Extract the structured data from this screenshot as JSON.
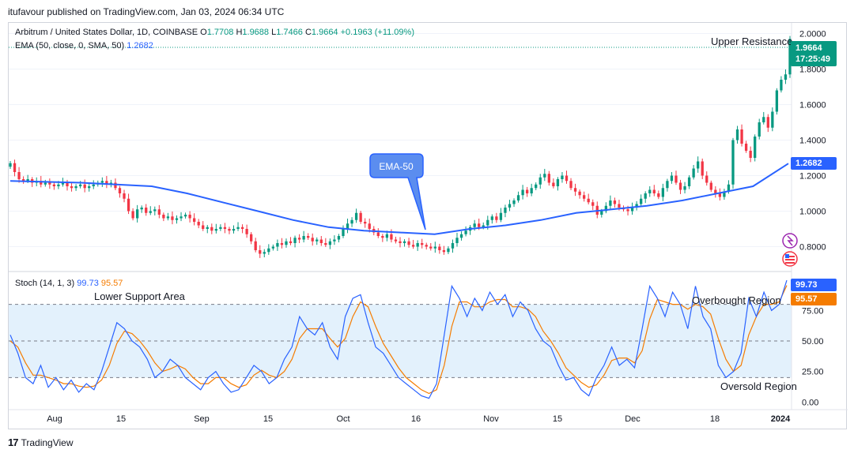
{
  "header": {
    "published": "itufavour published on TradingView.com, Jan 03, 2024 06:34 UTC"
  },
  "main_legend": {
    "symbol": "Arbitrum / United States Dollar, 1D, COINBASE",
    "o_label": "O",
    "o": "1.7708",
    "h_label": "H",
    "h": "1.9688",
    "l_label": "L",
    "l": "1.7466",
    "c_label": "C",
    "c": "1.9664",
    "change": "+0.1963 (+11.09%)"
  },
  "ema_legend": {
    "label": "EMA (50, close, 0, SMA, 50)",
    "value": "1.2682"
  },
  "stoch_legend": {
    "label": "Stoch (14, 1, 3)",
    "k": "99.73",
    "d": "95.57"
  },
  "annotations": {
    "upper_resistance": "Upper Resistance",
    "ema_callout": "EMA-50",
    "lower_support": "Lower Support Area",
    "overbought": "Overbought Region",
    "oversold": "Oversold Region"
  },
  "price_tags": {
    "last_price": "1.9664",
    "countdown": "17:25:49",
    "ema_value": "1.2682",
    "stoch_k": "99.73",
    "stoch_d": "95.57"
  },
  "footer": {
    "brand": "TradingView"
  },
  "colors": {
    "up": "#089981",
    "down": "#f23645",
    "ema": "#2962ff",
    "stoch_k": "#2962ff",
    "stoch_d": "#f57c00",
    "band": "#e3f1fc"
  },
  "chart_data": [
    {
      "type": "candlestick",
      "title": "Arbitrum / United States Dollar, 1D, COINBASE",
      "x_ticks": [
        "Aug",
        "15",
        "Sep",
        "15",
        "Oct",
        "16",
        "Nov",
        "15",
        "Dec",
        "18",
        "2024"
      ],
      "y_ticks": [
        "0.8000",
        "1.0000",
        "1.2000",
        "1.4000",
        "1.6000",
        "1.8000",
        "2.0000"
      ],
      "ylim": [
        0.66,
        2.06
      ],
      "close_series": [
        1.27,
        1.22,
        1.18,
        1.17,
        1.18,
        1.16,
        1.17,
        1.15,
        1.16,
        1.15,
        1.14,
        1.15,
        1.16,
        1.14,
        1.13,
        1.14,
        1.15,
        1.13,
        1.14,
        1.15,
        1.16,
        1.17,
        1.15,
        1.16,
        1.13,
        1.1,
        1.07,
        1.0,
        0.96,
        1.01,
        1.02,
        0.99,
        1.0,
        1.01,
        0.98,
        0.96,
        0.97,
        0.95,
        0.96,
        0.97,
        0.98,
        0.96,
        0.94,
        0.92,
        0.9,
        0.91,
        0.89,
        0.9,
        0.91,
        0.9,
        0.89,
        0.9,
        0.91,
        0.9,
        0.87,
        0.83,
        0.78,
        0.76,
        0.77,
        0.79,
        0.8,
        0.82,
        0.81,
        0.83,
        0.82,
        0.85,
        0.84,
        0.86,
        0.85,
        0.83,
        0.84,
        0.82,
        0.81,
        0.83,
        0.84,
        0.86,
        0.9,
        0.93,
        0.95,
        0.99,
        0.94,
        0.93,
        0.9,
        0.88,
        0.86,
        0.85,
        0.87,
        0.84,
        0.83,
        0.82,
        0.83,
        0.81,
        0.8,
        0.82,
        0.81,
        0.8,
        0.79,
        0.8,
        0.78,
        0.77,
        0.79,
        0.82,
        0.85,
        0.87,
        0.89,
        0.91,
        0.93,
        0.91,
        0.92,
        0.95,
        0.97,
        0.95,
        0.99,
        1.02,
        1.04,
        1.06,
        1.09,
        1.12,
        1.1,
        1.13,
        1.15,
        1.19,
        1.21,
        1.16,
        1.14,
        1.18,
        1.2,
        1.17,
        1.13,
        1.11,
        1.09,
        1.07,
        1.05,
        1.03,
        0.98,
        1.0,
        1.03,
        1.06,
        1.04,
        1.02,
        1.01,
        1.0,
        1.02,
        1.04,
        1.07,
        1.1,
        1.12,
        1.1,
        1.08,
        1.13,
        1.17,
        1.2,
        1.16,
        1.12,
        1.14,
        1.19,
        1.24,
        1.28,
        1.2,
        1.16,
        1.12,
        1.1,
        1.08,
        1.11,
        1.15,
        1.4,
        1.46,
        1.38,
        1.34,
        1.3,
        1.42,
        1.5,
        1.53,
        1.47,
        1.56,
        1.68,
        1.74,
        1.77,
        1.97
      ]
    },
    {
      "type": "line",
      "title": "EMA (50, close, 0, SMA, 50)",
      "series": [
        {
          "name": "EMA (50, close, 0, SMA, 50)",
          "last_value": 1.2682,
          "values": [
            1.17,
            1.165,
            1.16,
            1.15,
            1.14,
            1.1,
            1.05,
            1.0,
            0.95,
            0.91,
            0.89,
            0.88,
            0.87,
            0.9,
            0.92,
            0.95,
            0.99,
            1.01,
            1.03,
            1.06,
            1.1,
            1.14,
            1.2682
          ]
        }
      ]
    },
    {
      "type": "line",
      "title": "Stoch (14, 1, 3)",
      "y_ticks": [
        "0.00",
        "25.00",
        "50.00",
        "75.00"
      ],
      "ylim": [
        -5,
        105
      ],
      "bands": {
        "overbought": 80,
        "middle": 50,
        "oversold": 20
      },
      "series": [
        {
          "name": "%K",
          "last_value": 99.73,
          "values": [
            55,
            40,
            20,
            15,
            30,
            12,
            20,
            10,
            18,
            8,
            15,
            10,
            25,
            45,
            65,
            60,
            50,
            45,
            35,
            20,
            25,
            35,
            30,
            20,
            15,
            10,
            20,
            25,
            15,
            8,
            10,
            20,
            30,
            25,
            15,
            20,
            35,
            45,
            70,
            60,
            55,
            65,
            45,
            35,
            70,
            85,
            88,
            65,
            45,
            40,
            30,
            20,
            15,
            10,
            5,
            3,
            15,
            55,
            95,
            85,
            70,
            85,
            75,
            90,
            80,
            88,
            70,
            82,
            75,
            60,
            50,
            45,
            30,
            18,
            20,
            10,
            5,
            20,
            30,
            45,
            30,
            35,
            28,
            60,
            95,
            85,
            70,
            90,
            80,
            60,
            95,
            70,
            60,
            30,
            20,
            25,
            40,
            85,
            70,
            90,
            75,
            80,
            99.73
          ]
        },
        {
          "name": "%D",
          "last_value": 95.57,
          "values": [
            50,
            45,
            32,
            22,
            22,
            20,
            18,
            15,
            15,
            13,
            12,
            13,
            18,
            30,
            48,
            58,
            56,
            50,
            42,
            32,
            25,
            27,
            30,
            27,
            20,
            15,
            15,
            20,
            20,
            15,
            12,
            14,
            22,
            26,
            22,
            20,
            25,
            35,
            52,
            60,
            60,
            60,
            52,
            45,
            52,
            70,
            82,
            78,
            62,
            48,
            38,
            28,
            20,
            15,
            10,
            7,
            10,
            30,
            62,
            82,
            82,
            78,
            78,
            82,
            84,
            84,
            78,
            78,
            76,
            70,
            58,
            50,
            40,
            28,
            22,
            16,
            12,
            14,
            22,
            34,
            36,
            36,
            32,
            42,
            68,
            84,
            82,
            80,
            80,
            76,
            80,
            78,
            72,
            52,
            35,
            25,
            30,
            55,
            70,
            80,
            80,
            82,
            95.57
          ]
        }
      ]
    }
  ]
}
